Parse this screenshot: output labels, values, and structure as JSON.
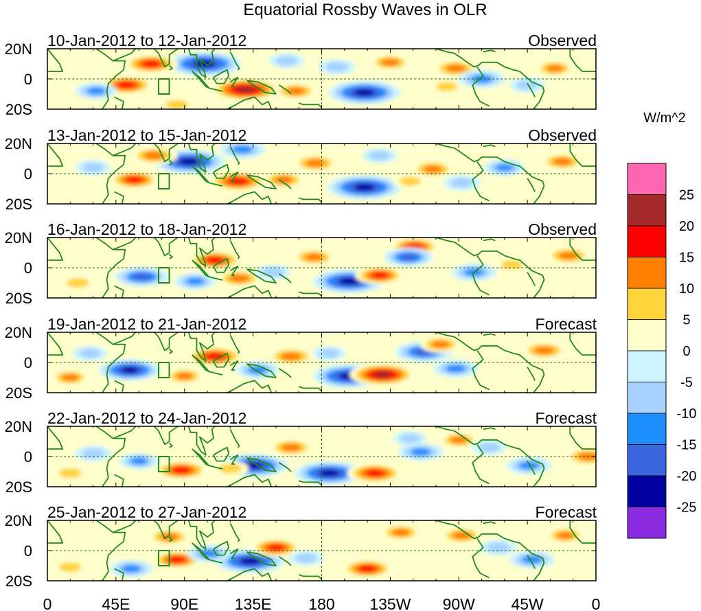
{
  "chart_data": {
    "type": "heatmap",
    "title": "Equatorial Rossby Waves in OLR",
    "colorbar": {
      "units": "W/m^2",
      "levels": [
        "25",
        "20",
        "15",
        "10",
        "5",
        "0",
        "-5",
        "-10",
        "-15",
        "-20",
        "-25"
      ],
      "colors": [
        "#ff66b2",
        "#a52a2a",
        "#ff0000",
        "#ff7f00",
        "#ffd33a",
        "#ffffcc",
        "#ccf4ff",
        "#a6d2ff",
        "#1e8eff",
        "#3c66dd",
        "#0000a0",
        "#8a2be2"
      ]
    },
    "x_ticks": [
      "0",
      "45E",
      "90E",
      "135E",
      "180",
      "135W",
      "90W",
      "45W",
      "0"
    ],
    "y_ticks": [
      "20N",
      "0",
      "20S"
    ],
    "xlim": [
      0,
      360
    ],
    "ylim": [
      -20,
      20
    ],
    "land_color": "#1f8a1f",
    "panels": [
      {
        "date": "10-Jan-2012 to 12-Jan-2012",
        "type": "Observed",
        "anomalies": [
          {
            "lon": 103,
            "lat": 10,
            "val": -28
          },
          {
            "lon": 130,
            "lat": -7,
            "val": 26
          },
          {
            "lon": 208,
            "lat": -9,
            "val": -27
          },
          {
            "lon": 68,
            "lat": 10,
            "val": 18
          },
          {
            "lon": 52,
            "lat": -4,
            "val": 18
          },
          {
            "lon": 163,
            "lat": -8,
            "val": 13
          },
          {
            "lon": 225,
            "lat": 11,
            "val": 12
          },
          {
            "lon": 268,
            "lat": 7,
            "val": 14
          },
          {
            "lon": 333,
            "lat": 7,
            "val": 11
          },
          {
            "lon": 32,
            "lat": -8,
            "val": -12
          },
          {
            "lon": 285,
            "lat": 0,
            "val": -15
          },
          {
            "lon": 262,
            "lat": -5,
            "val": 9
          },
          {
            "lon": 315,
            "lat": -4,
            "val": -9
          },
          {
            "lon": 190,
            "lat": 8,
            "val": -10
          },
          {
            "lon": 157,
            "lat": 12,
            "val": -9
          },
          {
            "lon": 85,
            "lat": -17,
            "val": 10
          }
        ]
      },
      {
        "date": "13-Jan-2012 to 15-Jan-2012",
        "type": "Observed",
        "anomalies": [
          {
            "lon": 93,
            "lat": 8,
            "val": -27
          },
          {
            "lon": 208,
            "lat": -9,
            "val": -28
          },
          {
            "lon": 125,
            "lat": -5,
            "val": 20
          },
          {
            "lon": 57,
            "lat": -4,
            "val": 16
          },
          {
            "lon": 70,
            "lat": 12,
            "val": 15
          },
          {
            "lon": 176,
            "lat": 7,
            "val": 14
          },
          {
            "lon": 253,
            "lat": 3,
            "val": 13
          },
          {
            "lon": 338,
            "lat": 8,
            "val": 13
          },
          {
            "lon": 155,
            "lat": -4,
            "val": 13
          },
          {
            "lon": 128,
            "lat": 16,
            "val": -14
          },
          {
            "lon": 218,
            "lat": 12,
            "val": -9
          },
          {
            "lon": 272,
            "lat": -6,
            "val": -10
          },
          {
            "lon": 300,
            "lat": 4,
            "val": -12
          },
          {
            "lon": 238,
            "lat": -5,
            "val": 9
          },
          {
            "lon": 30,
            "lat": 4,
            "val": -9
          }
        ]
      },
      {
        "date": "16-Jan-2012 to 18-Jan-2012",
        "type": "Observed",
        "anomalies": [
          {
            "lon": 198,
            "lat": -9,
            "val": -27
          },
          {
            "lon": 110,
            "lat": 5,
            "val": 18
          },
          {
            "lon": 218,
            "lat": -5,
            "val": 16
          },
          {
            "lon": 175,
            "lat": 7,
            "val": 13
          },
          {
            "lon": 241,
            "lat": 14,
            "val": 16
          },
          {
            "lon": 126,
            "lat": -7,
            "val": 14
          },
          {
            "lon": 342,
            "lat": 8,
            "val": 14
          },
          {
            "lon": 62,
            "lat": -6,
            "val": -18
          },
          {
            "lon": 237,
            "lat": 7,
            "val": -16
          },
          {
            "lon": 97,
            "lat": -9,
            "val": -12
          },
          {
            "lon": 280,
            "lat": -3,
            "val": -14
          },
          {
            "lon": 20,
            "lat": -10,
            "val": 10
          },
          {
            "lon": 148,
            "lat": -3,
            "val": -9
          },
          {
            "lon": 305,
            "lat": 2,
            "val": 9
          }
        ]
      },
      {
        "date": "19-Jan-2012 to 21-Jan-2012",
        "type": "Forecast",
        "anomalies": [
          {
            "lon": 198,
            "lat": -9,
            "val": -27
          },
          {
            "lon": 110,
            "lat": 4,
            "val": 20
          },
          {
            "lon": 220,
            "lat": -8,
            "val": 24
          },
          {
            "lon": 54,
            "lat": -5,
            "val": -22
          },
          {
            "lon": 160,
            "lat": 4,
            "val": 15
          },
          {
            "lon": 247,
            "lat": 7,
            "val": -20
          },
          {
            "lon": 326,
            "lat": 8,
            "val": 14
          },
          {
            "lon": 258,
            "lat": 12,
            "val": 12
          },
          {
            "lon": 90,
            "lat": -9,
            "val": 11
          },
          {
            "lon": 15,
            "lat": -10,
            "val": 11
          },
          {
            "lon": 138,
            "lat": -5,
            "val": -13
          },
          {
            "lon": 268,
            "lat": -4,
            "val": -14
          },
          {
            "lon": 28,
            "lat": 6,
            "val": -9
          },
          {
            "lon": 185,
            "lat": 6,
            "val": -8
          }
        ]
      },
      {
        "date": "22-Jan-2012 to 24-Jan-2012",
        "type": "Forecast",
        "anomalies": [
          {
            "lon": 135,
            "lat": -6,
            "val": -26
          },
          {
            "lon": 185,
            "lat": -11,
            "val": -26
          },
          {
            "lon": 215,
            "lat": -11,
            "val": 19
          },
          {
            "lon": 88,
            "lat": -9,
            "val": 18
          },
          {
            "lon": 160,
            "lat": 6,
            "val": 14
          },
          {
            "lon": 245,
            "lat": 3,
            "val": -14
          },
          {
            "lon": 238,
            "lat": 12,
            "val": -8
          },
          {
            "lon": 270,
            "lat": 11,
            "val": 11
          },
          {
            "lon": 355,
            "lat": 0,
            "val": 15
          },
          {
            "lon": 120,
            "lat": -8,
            "val": 10
          },
          {
            "lon": 30,
            "lat": 2,
            "val": -10
          },
          {
            "lon": 15,
            "lat": -11,
            "val": 10
          },
          {
            "lon": 60,
            "lat": -3,
            "val": -11
          },
          {
            "lon": 316,
            "lat": -6,
            "val": -14
          },
          {
            "lon": 290,
            "lat": 6,
            "val": -9
          }
        ]
      },
      {
        "date": "25-Jan-2012 to 27-Jan-2012",
        "type": "Forecast",
        "anomalies": [
          {
            "lon": 133,
            "lat": -7,
            "val": -26
          },
          {
            "lon": 150,
            "lat": 2,
            "val": 16
          },
          {
            "lon": 210,
            "lat": -12,
            "val": 17
          },
          {
            "lon": 85,
            "lat": -6,
            "val": 16
          },
          {
            "lon": 80,
            "lat": 9,
            "val": 13
          },
          {
            "lon": 106,
            "lat": -2,
            "val": -13
          },
          {
            "lon": 232,
            "lat": 12,
            "val": 12
          },
          {
            "lon": 272,
            "lat": 10,
            "val": 13
          },
          {
            "lon": 340,
            "lat": 10,
            "val": 11
          },
          {
            "lon": 318,
            "lat": -6,
            "val": -14
          },
          {
            "lon": 55,
            "lat": -12,
            "val": -13
          },
          {
            "lon": 15,
            "lat": -11,
            "val": 10
          },
          {
            "lon": 170,
            "lat": -5,
            "val": -9
          },
          {
            "lon": 296,
            "lat": 2,
            "val": -10
          }
        ]
      }
    ]
  }
}
